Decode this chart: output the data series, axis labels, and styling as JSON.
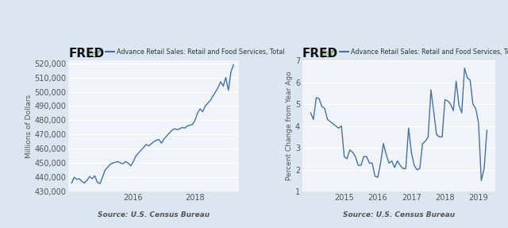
{
  "background_color": "#dce6f0",
  "plot_bg_color": "#f0f4f8",
  "line_color": "#4472a8",
  "title_series": "Advance Retail Sales: Retail and Food Services, Total",
  "source_text": "Source: U.S. Census Bureau",
  "left": {
    "ylabel": "Millions of Dollars",
    "ylim": [
      430000,
      522000
    ],
    "yticks": [
      430000,
      440000,
      450000,
      460000,
      470000,
      480000,
      490000,
      500000,
      510000,
      520000
    ],
    "xlim": [
      2013.9,
      2019.42
    ],
    "xtick_labels": [
      "2016",
      "2018"
    ],
    "xtick_positions": [
      2016,
      2018
    ],
    "data_x": [
      2014.0,
      2014.083,
      2014.167,
      2014.25,
      2014.333,
      2014.417,
      2014.5,
      2014.583,
      2014.667,
      2014.75,
      2014.833,
      2014.917,
      2015.0,
      2015.083,
      2015.167,
      2015.25,
      2015.333,
      2015.417,
      2015.5,
      2015.583,
      2015.667,
      2015.75,
      2015.833,
      2015.917,
      2016.0,
      2016.083,
      2016.167,
      2016.25,
      2016.333,
      2016.417,
      2016.5,
      2016.583,
      2016.667,
      2016.75,
      2016.833,
      2016.917,
      2017.0,
      2017.083,
      2017.167,
      2017.25,
      2017.333,
      2017.417,
      2017.5,
      2017.583,
      2017.667,
      2017.75,
      2017.833,
      2017.917,
      2018.0,
      2018.083,
      2018.167,
      2018.25,
      2018.333,
      2018.417,
      2018.5,
      2018.583,
      2018.667,
      2018.75,
      2018.833,
      2018.917,
      2019.0,
      2019.083,
      2019.167,
      2019.25
    ],
    "data_y": [
      436000,
      440000,
      438500,
      439000,
      437000,
      436000,
      438000,
      440500,
      439000,
      441000,
      436500,
      435500,
      440000,
      445000,
      447000,
      449000,
      450000,
      450500,
      451000,
      450000,
      449500,
      451000,
      450000,
      448000,
      451000,
      455000,
      457000,
      459000,
      461000,
      463000,
      462000,
      463500,
      465000,
      466000,
      466500,
      464000,
      467000,
      469000,
      471000,
      473000,
      474000,
      473500,
      474000,
      475000,
      474500,
      476000,
      476500,
      477000,
      480000,
      485000,
      488000,
      486000,
      490000,
      492000,
      494000,
      497000,
      500000,
      503000,
      507000,
      504000,
      510000,
      501000,
      514000,
      519000
    ]
  },
  "right": {
    "ylabel": "Percent Change from Year Ago",
    "ylim": [
      1,
      7
    ],
    "yticks": [
      1,
      2,
      3,
      4,
      5,
      6,
      7
    ],
    "xlim": [
      2013.75,
      2019.5
    ],
    "xtick_labels": [
      "2015",
      "2016",
      "2017",
      "2018",
      "2019"
    ],
    "xtick_positions": [
      2015,
      2016,
      2017,
      2018,
      2019
    ],
    "data_x": [
      2014.0,
      2014.083,
      2014.167,
      2014.25,
      2014.333,
      2014.417,
      2014.5,
      2014.583,
      2014.667,
      2014.75,
      2014.833,
      2014.917,
      2015.0,
      2015.083,
      2015.167,
      2015.25,
      2015.333,
      2015.417,
      2015.5,
      2015.583,
      2015.667,
      2015.75,
      2015.833,
      2015.917,
      2016.0,
      2016.083,
      2016.167,
      2016.25,
      2016.333,
      2016.417,
      2016.5,
      2016.583,
      2016.667,
      2016.75,
      2016.833,
      2016.917,
      2017.0,
      2017.083,
      2017.167,
      2017.25,
      2017.333,
      2017.417,
      2017.5,
      2017.583,
      2017.667,
      2017.75,
      2017.833,
      2017.917,
      2018.0,
      2018.083,
      2018.167,
      2018.25,
      2018.333,
      2018.417,
      2018.5,
      2018.583,
      2018.667,
      2018.75,
      2018.833,
      2018.917,
      2019.0,
      2019.083,
      2019.167,
      2019.25
    ],
    "data_y": [
      4.6,
      4.3,
      5.3,
      5.25,
      4.9,
      4.8,
      4.3,
      4.2,
      4.1,
      4.0,
      3.9,
      4.0,
      2.6,
      2.5,
      2.9,
      2.8,
      2.6,
      2.2,
      2.2,
      2.6,
      2.6,
      2.3,
      2.3,
      1.7,
      1.65,
      2.3,
      3.2,
      2.7,
      2.3,
      2.4,
      2.1,
      2.4,
      2.2,
      2.05,
      2.05,
      3.9,
      2.8,
      2.2,
      2.0,
      2.05,
      3.2,
      3.3,
      3.5,
      5.65,
      4.65,
      3.6,
      3.5,
      3.5,
      5.2,
      5.15,
      5.0,
      4.7,
      6.05,
      4.95,
      4.6,
      6.65,
      6.2,
      6.1,
      5.0,
      4.8,
      4.15,
      1.5,
      2.05,
      3.8
    ]
  }
}
